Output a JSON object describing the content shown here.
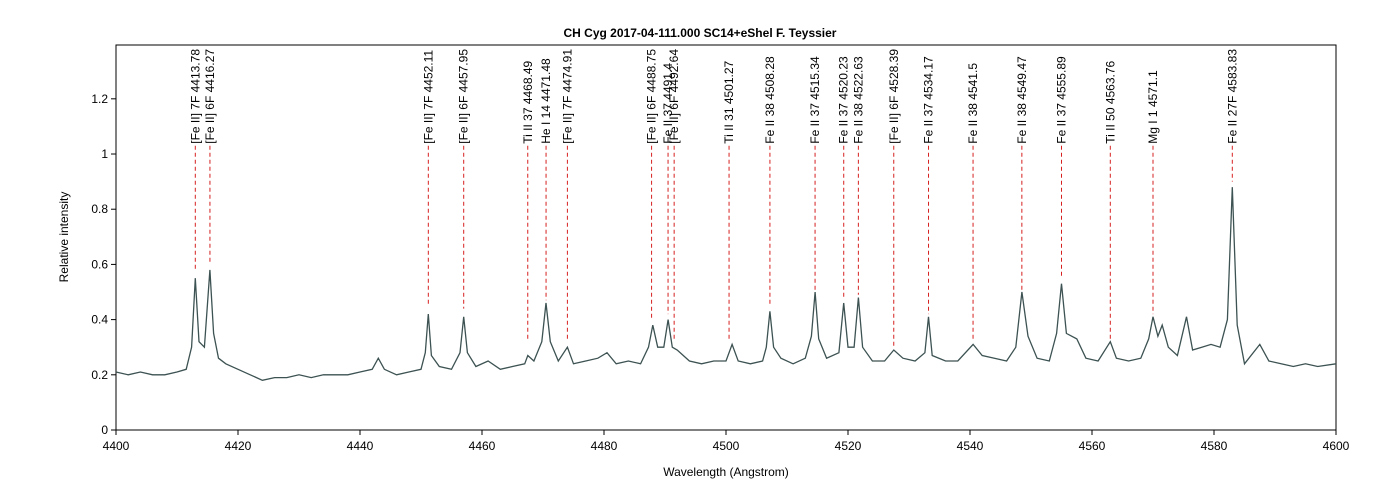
{
  "chart_data": {
    "type": "line",
    "title": "CH Cyg  2017-04-111.000  SC14+eShel F. Teyssier",
    "xlabel": "Wavelength (Angstrom)",
    "ylabel": "Relative intensity",
    "xlim": [
      4400,
      4600
    ],
    "ylim": [
      0,
      1.395
    ],
    "xticks": [
      4400,
      4420,
      4440,
      4460,
      4480,
      4500,
      4520,
      4540,
      4560,
      4580,
      4600
    ],
    "yticks": [
      0,
      0.2,
      0.4,
      0.6,
      0.8,
      1,
      1.2
    ],
    "series": [
      {
        "name": "CH Cyg",
        "color": "#3d5252",
        "x": [
          4400,
          4402,
          4404,
          4406,
          4408,
          4410,
          4411.5,
          4412.4,
          4413,
          4413.6,
          4414.5,
          4415.4,
          4416,
          4416.8,
          4418,
          4420,
          4422,
          4424,
          4426,
          4428,
          4430,
          4432,
          4434,
          4436,
          4438,
          4440,
          4442,
          4443,
          4444,
          4446,
          4448,
          4450,
          4450.7,
          4451.2,
          4451.7,
          4453,
          4455,
          4456.4,
          4457,
          4457.6,
          4459,
          4461,
          4463,
          4465,
          4467,
          4467.5,
          4468.5,
          4469.8,
          4470.5,
          4471.2,
          4472.5,
          4474,
          4475,
          4477,
          4479,
          4480.5,
          4482,
          4484,
          4486,
          4487.3,
          4488,
          4488.8,
          4489.8,
          4490.5,
          4491.2,
          4492,
          4494,
          4496,
          4498,
          4500,
          4501,
          4502,
          4504,
          4506,
          4506.6,
          4507.2,
          4507.8,
          4509,
          4511,
          4513,
          4514,
          4514.6,
          4515.2,
          4516.5,
          4518.5,
          4519.3,
          4520,
          4521,
          4521.7,
          4522.4,
          4524,
          4526,
          4527.5,
          4529,
          4531,
          4532.6,
          4533.2,
          4533.8,
          4536,
          4538,
          4540.5,
          4542,
          4544,
          4546,
          4547.5,
          4548.5,
          4549.5,
          4551,
          4553,
          4554.2,
          4555,
          4555.8,
          4557.5,
          4559,
          4561,
          4563,
          4564,
          4566,
          4568,
          4569.3,
          4570,
          4570.8,
          4571.5,
          4572.5,
          4574,
          4575.5,
          4576.5,
          4578,
          4579.5,
          4581,
          4582.2,
          4583,
          4583.8,
          4585,
          4587.5,
          4589,
          4591,
          4593,
          4595,
          4597,
          4600
        ],
        "values": [
          0.21,
          0.2,
          0.21,
          0.2,
          0.2,
          0.21,
          0.22,
          0.3,
          0.55,
          0.32,
          0.3,
          0.58,
          0.35,
          0.26,
          0.24,
          0.22,
          0.2,
          0.18,
          0.19,
          0.19,
          0.2,
          0.19,
          0.2,
          0.2,
          0.2,
          0.21,
          0.22,
          0.26,
          0.22,
          0.2,
          0.21,
          0.22,
          0.28,
          0.42,
          0.27,
          0.23,
          0.22,
          0.28,
          0.41,
          0.28,
          0.23,
          0.25,
          0.22,
          0.23,
          0.24,
          0.27,
          0.25,
          0.32,
          0.46,
          0.32,
          0.25,
          0.3,
          0.24,
          0.25,
          0.26,
          0.28,
          0.24,
          0.25,
          0.24,
          0.3,
          0.38,
          0.3,
          0.3,
          0.4,
          0.3,
          0.29,
          0.25,
          0.24,
          0.25,
          0.25,
          0.31,
          0.25,
          0.24,
          0.25,
          0.3,
          0.43,
          0.3,
          0.26,
          0.24,
          0.26,
          0.34,
          0.5,
          0.33,
          0.26,
          0.28,
          0.46,
          0.3,
          0.3,
          0.48,
          0.3,
          0.25,
          0.25,
          0.29,
          0.26,
          0.25,
          0.28,
          0.41,
          0.27,
          0.25,
          0.25,
          0.31,
          0.27,
          0.26,
          0.25,
          0.3,
          0.5,
          0.34,
          0.26,
          0.25,
          0.35,
          0.53,
          0.35,
          0.33,
          0.26,
          0.25,
          0.32,
          0.26,
          0.25,
          0.26,
          0.33,
          0.41,
          0.34,
          0.38,
          0.3,
          0.27,
          0.41,
          0.29,
          0.3,
          0.31,
          0.3,
          0.4,
          0.88,
          0.38,
          0.24,
          0.31,
          0.25,
          0.24,
          0.23,
          0.24,
          0.23,
          0.24
        ]
      }
    ],
    "annotations": [
      {
        "label": "[Fe II] 7F 4413.78",
        "x": 4413,
        "y": 0.58
      },
      {
        "label": "[Fe II] 6F 4416.27",
        "x": 4415.4,
        "y": 0.6
      },
      {
        "label": "[Fe II] 7F 4452.11",
        "x": 4451.2,
        "y": 0.45
      },
      {
        "label": "[Fe II] 6F 4457.95",
        "x": 4457,
        "y": 0.44
      },
      {
        "label": "Ti II 37 4468.49",
        "x": 4467.5,
        "y": 0.32
      },
      {
        "label": "He I 14 4471.48",
        "x": 4470.5,
        "y": 0.47
      },
      {
        "label": "[Fe II] 7F 4474.91",
        "x": 4474,
        "y": 0.33
      },
      {
        "label": "[Fe II] 6F 4488.75",
        "x": 4487.8,
        "y": 0.4
      },
      {
        "label": "Fe II 37 4491.4",
        "x": 4490.5,
        "y": 0.42
      },
      {
        "label": "[Fe II] 6F 4492.64",
        "x": 4491.5,
        "y": 0.32
      },
      {
        "label": "Ti II 31 4501.27",
        "x": 4500.5,
        "y": 0.32
      },
      {
        "label": "Fe II 38 4508.28",
        "x": 4507.2,
        "y": 0.45
      },
      {
        "label": "Fe II 37 4515.34",
        "x": 4514.6,
        "y": 0.5
      },
      {
        "label": "Fe II 37 4520.23",
        "x": 4519.3,
        "y": 0.48
      },
      {
        "label": "Fe II 38 4522.63",
        "x": 4521.7,
        "y": 0.49
      },
      {
        "label": "[Fe II] 6F 4528.39",
        "x": 4527.5,
        "y": 0.3
      },
      {
        "label": "Fe II 37 4534.17",
        "x": 4533.2,
        "y": 0.42
      },
      {
        "label": "Fe II 38 4541.5",
        "x": 4540.5,
        "y": 0.33
      },
      {
        "label": "Fe II 38 4549.47",
        "x": 4548.5,
        "y": 0.5
      },
      {
        "label": "Fe II 37 4555.89",
        "x": 4555,
        "y": 0.55
      },
      {
        "label": "Ti II 50 4563.76",
        "x": 4563,
        "y": 0.33
      },
      {
        "label": "Mg I 1 4571.1",
        "x": 4570,
        "y": 0.42
      },
      {
        "label": "Fe II 27F 4583.83",
        "x": 4583,
        "y": 0.9
      }
    ]
  }
}
